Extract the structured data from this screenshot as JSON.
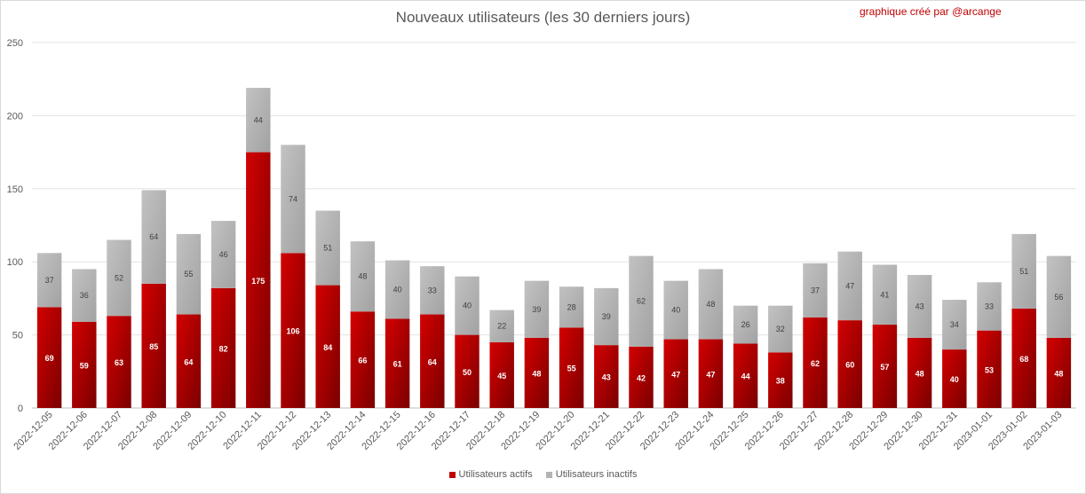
{
  "chart_data": {
    "type": "bar",
    "stacked": true,
    "title": "Nouveaux utilisateurs  (les 30 derniers  jours)",
    "annotation": "graphique créé par @arcange",
    "categories": [
      "2022-12-05",
      "2022-12-06",
      "2022-12-07",
      "2022-12-08",
      "2022-12-09",
      "2022-12-10",
      "2022-12-11",
      "2022-12-12",
      "2022-12-13",
      "2022-12-14",
      "2022-12-15",
      "2022-12-16",
      "2022-12-17",
      "2022-12-18",
      "2022-12-19",
      "2022-12-20",
      "2022-12-21",
      "2022-12-22",
      "2022-12-23",
      "2022-12-24",
      "2022-12-25",
      "2022-12-26",
      "2022-12-27",
      "2022-12-28",
      "2022-12-29",
      "2022-12-30",
      "2022-12-31",
      "2023-01-01",
      "2023-01-02",
      "2023-01-03"
    ],
    "series": [
      {
        "name": "Utilisateurs actifs",
        "color": "#c00000",
        "values": [
          69,
          59,
          63,
          85,
          64,
          82,
          175,
          106,
          84,
          66,
          61,
          64,
          50,
          45,
          48,
          55,
          43,
          42,
          47,
          47,
          44,
          38,
          62,
          60,
          57,
          48,
          40,
          53,
          68,
          48
        ]
      },
      {
        "name": "Utilisateurs inactifs",
        "color": "#b3b3b3",
        "values": [
          37,
          36,
          52,
          64,
          55,
          46,
          44,
          74,
          51,
          48,
          40,
          33,
          40,
          22,
          39,
          28,
          39,
          62,
          40,
          48,
          26,
          32,
          37,
          47,
          41,
          43,
          34,
          33,
          51,
          56
        ]
      }
    ],
    "y_ticks": [
      0,
      50,
      100,
      150,
      200,
      250
    ],
    "ylim": [
      0,
      250
    ],
    "grid": true,
    "legend_position": "bottom"
  }
}
